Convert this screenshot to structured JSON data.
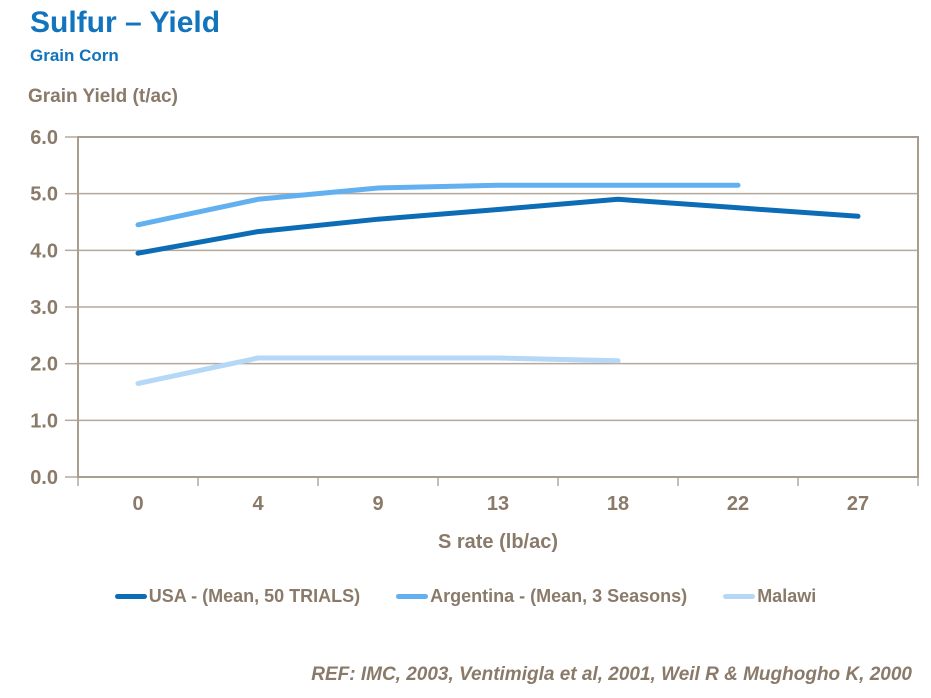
{
  "header": {
    "title": "Sulfur – Yield",
    "subtitle": "Grain Corn"
  },
  "footer": {
    "reference": "REF: IMC, 2003, Ventimigla et al, 2001, Weil R & Mughogho K, 2000"
  },
  "colors": {
    "accent_blue": "#1274BD",
    "axis_text": "#8A7A6A",
    "gridline": "#B5A99C",
    "plot_border": "#A99D8F",
    "series_usa": "#0D6CB6",
    "series_argentina": "#63B0F1",
    "series_malawi": "#B5D8F6"
  },
  "chart_data": {
    "type": "line",
    "title": "Sulfur – Yield (Grain Corn)",
    "ylabel": "Grain Yield (t/ac)",
    "xlabel": "S rate (lb/ac)",
    "categories": [
      "0",
      "4",
      "9",
      "13",
      "18",
      "22",
      "27"
    ],
    "yticks": [
      "6.0",
      "5.0",
      "4.0",
      "3.0",
      "2.0",
      "1.0",
      "0.0"
    ],
    "ylim": [
      0,
      6
    ],
    "grid": true,
    "legend_position": "bottom",
    "series": [
      {
        "name": "USA - (Mean, 50 TRIALS)",
        "color": "#0D6CB6",
        "values": [
          3.95,
          4.33,
          4.55,
          4.72,
          4.9,
          4.75,
          4.6
        ]
      },
      {
        "name": "Argentina - (Mean, 3 Seasons)",
        "color": "#63B0F1",
        "values": [
          4.45,
          4.9,
          5.1,
          5.15,
          5.15,
          5.15
        ]
      },
      {
        "name": "Malawi",
        "color": "#B5D8F6",
        "values": [
          1.65,
          2.1,
          2.1,
          2.1,
          2.05
        ]
      }
    ]
  }
}
